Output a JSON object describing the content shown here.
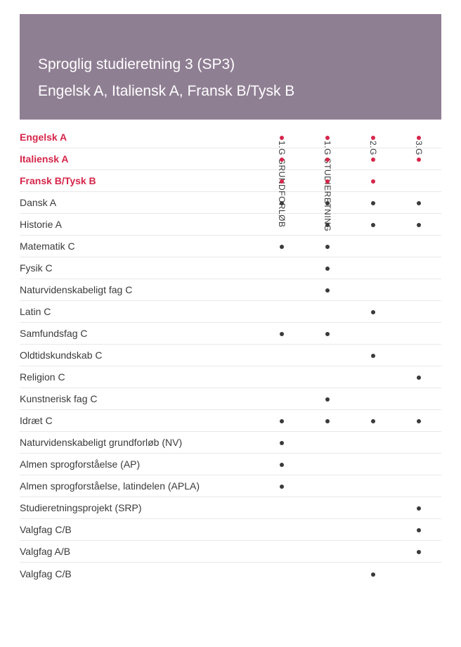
{
  "header": {
    "title": "Sproglig studieretning 3 (SP3)",
    "subtitle": "Engelsk A, Italiensk A, Fransk B/Tysk B",
    "bg_color": "#8f7f93",
    "text_color": "#ffffff"
  },
  "columns": [
    {
      "label": "1.G  GRUNDFORLØB"
    },
    {
      "label": "1.G  STUDIERETNING"
    },
    {
      "label": "2.G"
    },
    {
      "label": "3.G"
    }
  ],
  "colors": {
    "highlight": "#d6264a",
    "text": "#3a3a3a",
    "dot_red": "#d6264a",
    "dot_black": "#3a3a3a",
    "row_border": "#e8e8e8"
  },
  "rows": [
    {
      "name": "Engelsk A",
      "highlight": true,
      "dots": [
        "red",
        "red",
        "red",
        "red"
      ]
    },
    {
      "name": "Italiensk A",
      "highlight": true,
      "dots": [
        "red",
        "red",
        "red",
        "red"
      ]
    },
    {
      "name": "Fransk B/Tysk B",
      "highlight": true,
      "dots": [
        "red",
        "red",
        "red",
        null
      ]
    },
    {
      "name": "Dansk A",
      "highlight": false,
      "dots": [
        "black",
        "black",
        "black",
        "black"
      ]
    },
    {
      "name": "Historie A",
      "highlight": false,
      "dots": [
        null,
        "black",
        "black",
        "black"
      ]
    },
    {
      "name": "Matematik C",
      "highlight": false,
      "dots": [
        "black",
        "black",
        null,
        null
      ]
    },
    {
      "name": "Fysik C",
      "highlight": false,
      "dots": [
        null,
        "black",
        null,
        null
      ]
    },
    {
      "name": "Naturvidenskabeligt fag C",
      "highlight": false,
      "dots": [
        null,
        "black",
        null,
        null
      ]
    },
    {
      "name": "Latin C",
      "highlight": false,
      "dots": [
        null,
        null,
        "black",
        null
      ]
    },
    {
      "name": "Samfundsfag C",
      "highlight": false,
      "dots": [
        "black",
        "black",
        null,
        null
      ]
    },
    {
      "name": "Oldtidskundskab C",
      "highlight": false,
      "dots": [
        null,
        null,
        "black",
        null
      ]
    },
    {
      "name": "Religion C",
      "highlight": false,
      "dots": [
        null,
        null,
        null,
        "black"
      ]
    },
    {
      "name": "Kunstnerisk fag C",
      "highlight": false,
      "dots": [
        null,
        "black",
        null,
        null
      ]
    },
    {
      "name": "Idræt C",
      "highlight": false,
      "dots": [
        "black",
        "black",
        "black",
        "black"
      ]
    },
    {
      "name": "Naturvidenskabeligt grundforløb (NV)",
      "highlight": false,
      "dots": [
        "black",
        null,
        null,
        null
      ]
    },
    {
      "name": "Almen sprogforståelse (AP)",
      "highlight": false,
      "dots": [
        "black",
        null,
        null,
        null
      ]
    },
    {
      "name": "Almen sprogforståelse, latindelen (APLA)",
      "highlight": false,
      "dots": [
        "black",
        null,
        null,
        null
      ]
    },
    {
      "name": "Studieretningsprojekt (SRP)",
      "highlight": false,
      "dots": [
        null,
        null,
        null,
        "black"
      ]
    },
    {
      "name": "Valgfag C/B",
      "highlight": false,
      "dots": [
        null,
        null,
        null,
        "black"
      ]
    },
    {
      "name": "Valgfag A/B",
      "highlight": false,
      "dots": [
        null,
        null,
        null,
        "black"
      ]
    },
    {
      "name": "Valgfag C/B",
      "highlight": false,
      "dots": [
        null,
        null,
        "black",
        null
      ]
    }
  ]
}
